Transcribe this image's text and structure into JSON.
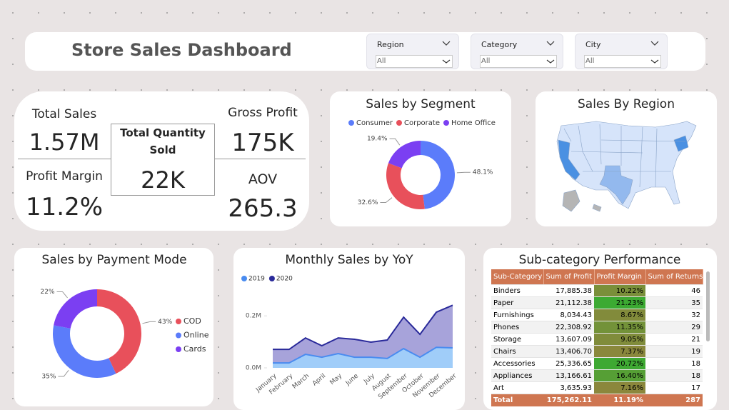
{
  "header": {
    "title": "Store Sales Dashboard"
  },
  "filters": [
    {
      "label": "Region",
      "value": "All"
    },
    {
      "label": "Category",
      "value": "All"
    },
    {
      "label": "City",
      "value": "All"
    }
  ],
  "kpis": [
    {
      "label": "Total Sales",
      "value": "1.57M"
    },
    {
      "label": "Total Quantity Sold",
      "value": "22K"
    },
    {
      "label": "Gross Profit",
      "value": "175K"
    },
    {
      "label": "Profit Margin",
      "value": "11.2%"
    },
    {
      "label": "AOV",
      "value": "265.3"
    }
  ],
  "chart_data": [
    {
      "type": "donut",
      "title": "Sales by Segment",
      "categories": [
        "Consumer",
        "Corporate",
        "Home Office"
      ],
      "values": [
        48.1,
        32.6,
        19.4
      ],
      "value_labels": [
        "48.1%",
        "32.6%",
        "19.4%"
      ],
      "colors": [
        "#5b7cfa",
        "#e8505b",
        "#7b3ff2"
      ],
      "legend": "top"
    },
    {
      "type": "map",
      "title": "Sales By Region"
    },
    {
      "type": "donut",
      "title": "Sales by Payment Mode",
      "categories": [
        "COD",
        "Online",
        "Cards"
      ],
      "values": [
        43,
        35,
        22
      ],
      "value_labels": [
        "43%",
        "35%",
        "22%"
      ],
      "colors": [
        "#e8505b",
        "#5b7cfa",
        "#7b3ff2"
      ],
      "legend": "right"
    },
    {
      "type": "area",
      "title": "Monthly Sales by YoY",
      "categories": [
        "January",
        "February",
        "March",
        "April",
        "May",
        "June",
        "July",
        "August",
        "September",
        "October",
        "November",
        "December"
      ],
      "series": [
        {
          "name": "2019",
          "color": "#4a8cf0",
          "values": [
            0.019,
            0.019,
            0.052,
            0.041,
            0.055,
            0.041,
            0.041,
            0.036,
            0.074,
            0.041,
            0.079,
            0.077
          ]
        },
        {
          "name": "2020",
          "color": "#2a2a9a",
          "values": [
            0.071,
            0.071,
            0.115,
            0.085,
            0.115,
            0.11,
            0.099,
            0.107,
            0.195,
            0.129,
            0.214,
            0.241
          ]
        }
      ],
      "ylim": [
        0,
        0.25
      ],
      "yticks": [
        {
          "value": 0,
          "label": "0.0M"
        },
        {
          "value": 0.2,
          "label": "0.2M"
        }
      ],
      "legend": "top-left"
    }
  ],
  "table": {
    "title": "Sub-category Performance",
    "columns": [
      "Sub-Category",
      "Sum of Profit",
      "Profit Margin",
      "Sum of Returns"
    ],
    "rows": [
      [
        "Binders",
        "17,885.38",
        "10.22%",
        "46"
      ],
      [
        "Paper",
        "21,112.38",
        "21.23%",
        "35"
      ],
      [
        "Furnishings",
        "8,034.43",
        "8.67%",
        "32"
      ],
      [
        "Phones",
        "22,308.92",
        "11.35%",
        "29"
      ],
      [
        "Storage",
        "13,607.09",
        "9.05%",
        "21"
      ],
      [
        "Chairs",
        "13,406.70",
        "7.37%",
        "19"
      ],
      [
        "Accessories",
        "25,336.65",
        "20.72%",
        "18"
      ],
      [
        "Appliances",
        "13,166.61",
        "16.40%",
        "18"
      ],
      [
        "Art",
        "3,635.93",
        "7.16%",
        "17"
      ]
    ],
    "total": [
      "Total",
      "175,262.11",
      "11.19%",
      "287"
    ]
  }
}
